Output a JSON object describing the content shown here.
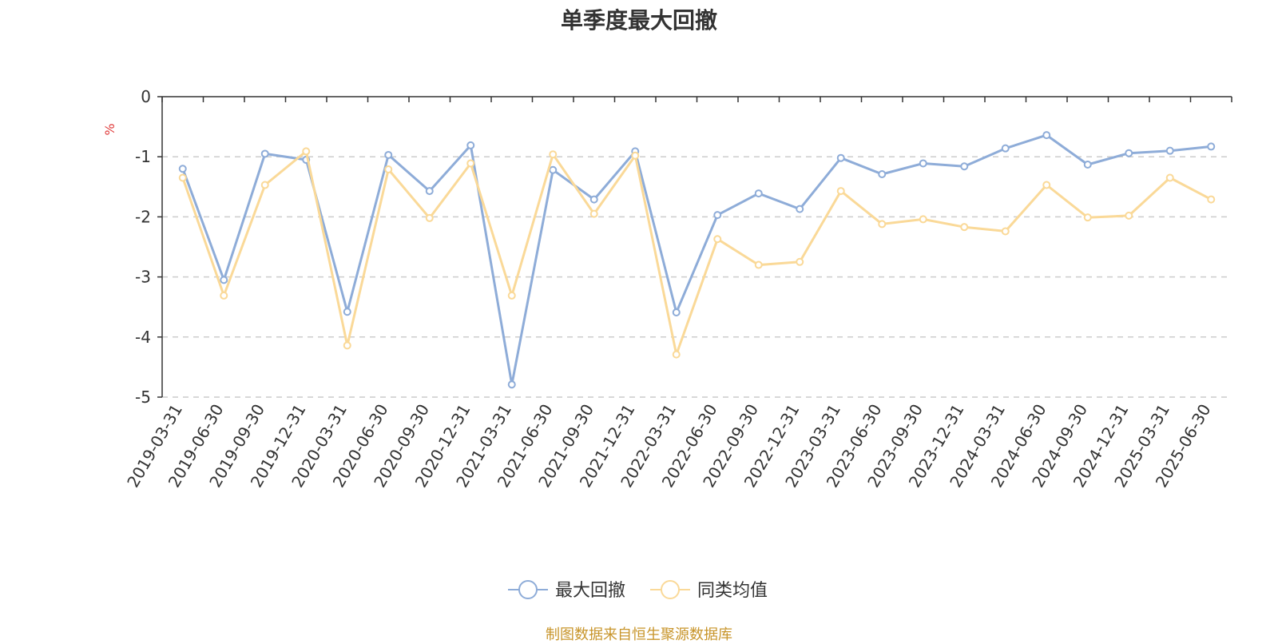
{
  "title": "单季度最大回撤",
  "footer": "制图数据来自恒生聚源数据库",
  "chart_data": {
    "type": "line",
    "title": "单季度最大回撤",
    "ylabel": "%",
    "xlabel": "",
    "ylim": [
      -5,
      0
    ],
    "yticks": [
      0,
      -1,
      -2,
      -3,
      -4,
      -5
    ],
    "grid": true,
    "legend_position": "bottom-center",
    "categories": [
      "2019-03-31",
      "2019-06-30",
      "2019-09-30",
      "2019-12-31",
      "2020-03-31",
      "2020-06-30",
      "2020-09-30",
      "2020-12-31",
      "2021-03-31",
      "2021-06-30",
      "2021-09-30",
      "2021-12-31",
      "2022-03-31",
      "2022-06-30",
      "2022-09-30",
      "2022-12-31",
      "2023-03-31",
      "2023-06-30",
      "2023-09-30",
      "2023-12-31",
      "2024-03-31",
      "2024-06-30",
      "2024-09-30",
      "2024-12-31",
      "2025-03-31",
      "2025-06-30"
    ],
    "series": [
      {
        "name": "最大回撤",
        "color": "#8eacd8",
        "values": [
          -1.2,
          -3.05,
          -0.95,
          -1.05,
          -3.58,
          -0.97,
          -1.57,
          -0.81,
          -4.79,
          -1.22,
          -1.71,
          -0.91,
          -3.59,
          -1.97,
          -1.61,
          -1.87,
          -1.02,
          -1.29,
          -1.11,
          -1.16,
          -0.86,
          -0.64,
          -1.13,
          -0.94,
          -0.9,
          -0.83
        ]
      },
      {
        "name": "同类均值",
        "color": "#fad998",
        "values": [
          -1.35,
          -3.31,
          -1.47,
          -0.91,
          -4.14,
          -1.21,
          -2.02,
          -1.11,
          -3.31,
          -0.96,
          -1.95,
          -0.98,
          -4.29,
          -2.37,
          -2.8,
          -2.75,
          -1.57,
          -2.12,
          -2.04,
          -2.17,
          -2.24,
          -1.47,
          -2.01,
          -1.98,
          -1.35,
          -1.71
        ]
      }
    ]
  }
}
